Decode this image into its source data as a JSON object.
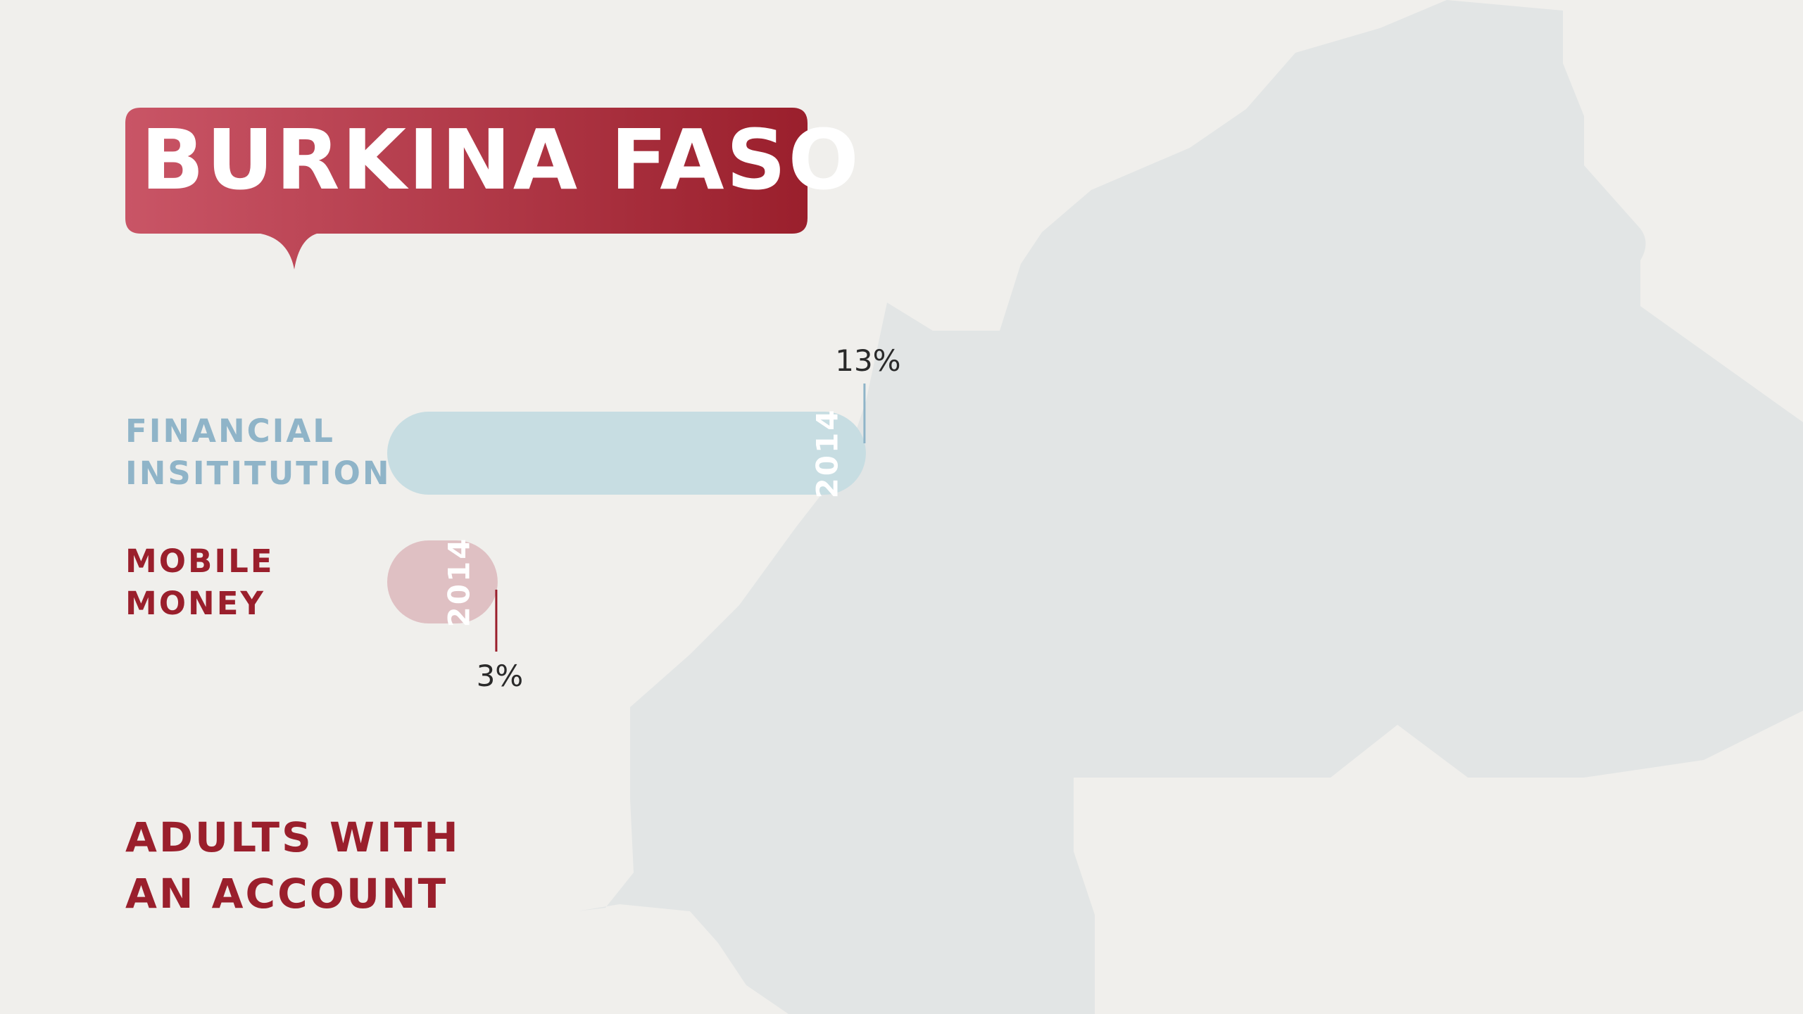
{
  "colors": {
    "background": "#f0efec",
    "map": "#e2e5e5",
    "financial": "#c7dde2",
    "financial_label": "#8fb4c8",
    "mobile": "#dfc0c3",
    "mobile_label": "#9a1f2c",
    "title_grad_start": "#c95566",
    "title_grad_end": "#9a1f2c"
  },
  "title": "BURKINA FASO",
  "subtitle": {
    "line1": "ADULTS WITH",
    "line2": "AN ACCOUNT"
  },
  "labels": {
    "financial": {
      "line1": "FINANCIAL",
      "line2": "INSITITUTION"
    },
    "mobile": {
      "line1": "MOBILE",
      "line2": "MONEY"
    }
  },
  "chart_data": {
    "type": "bar",
    "orientation": "horizontal",
    "categories": [
      "FINANCIAL INSITITUTION",
      "MOBILE MONEY"
    ],
    "series": [
      {
        "name": "2014",
        "values": [
          13,
          3
        ]
      }
    ],
    "data_labels": [
      "13%",
      "3%"
    ],
    "bar_year_labels": [
      "2014",
      "2014"
    ],
    "unit": "%"
  }
}
